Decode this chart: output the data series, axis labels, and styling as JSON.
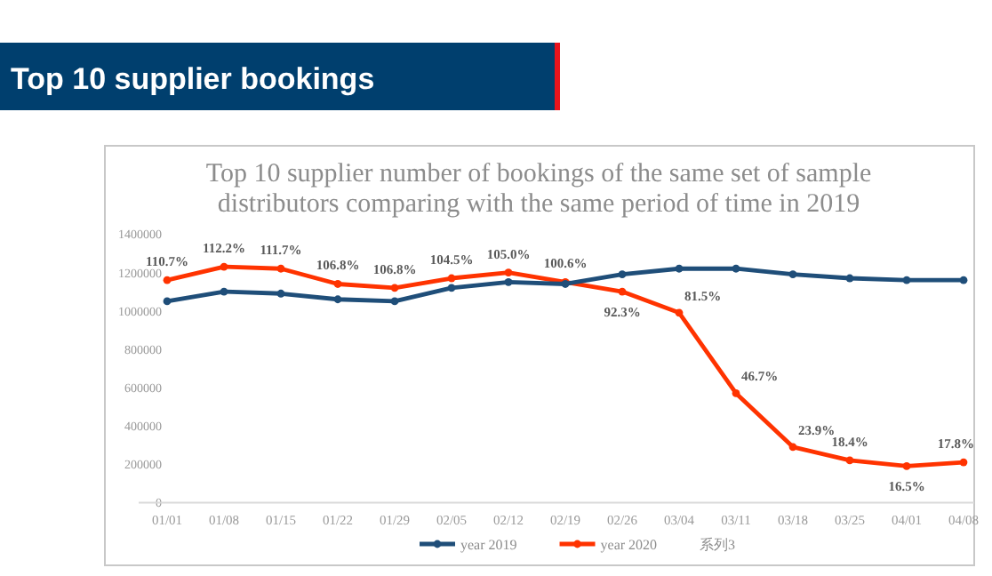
{
  "chart_data": {
    "type": "line",
    "title": "Top 10 supplier bookings",
    "subtitle": "Top 10 supplier number of bookings of the same set of sample distributors comparing with the same period of time in 2019",
    "categories": [
      "01/01",
      "01/08",
      "01/15",
      "01/22",
      "01/29",
      "02/05",
      "02/12",
      "02/19",
      "02/26",
      "03/04",
      "03/11",
      "03/18",
      "03/25",
      "04/01",
      "04/08"
    ],
    "series": [
      {
        "name": "year 2019",
        "color": "#1f4e79",
        "values": [
          1050000,
          1100000,
          1090000,
          1060000,
          1050000,
          1120000,
          1150000,
          1140000,
          1190000,
          1220000,
          1220000,
          1190000,
          1170000,
          1160000,
          1160000
        ]
      },
      {
        "name": "year 2020",
        "color": "#ff3300",
        "values": [
          1160000,
          1230000,
          1220000,
          1140000,
          1120000,
          1170000,
          1200000,
          1150000,
          1100000,
          990000,
          570000,
          290000,
          220000,
          190000,
          210000
        ]
      },
      {
        "name": "系列3",
        "values": [
          null,
          null,
          null,
          null,
          null,
          null,
          null,
          null,
          null,
          null,
          null,
          null,
          null,
          null,
          null
        ]
      }
    ],
    "annotations": [
      {
        "text": "110.7%",
        "x": "01/01",
        "y": 1160000
      },
      {
        "text": "112.2%",
        "x": "01/08",
        "y": 1230000
      },
      {
        "text": "111.7%",
        "x": "01/15",
        "y": 1220000
      },
      {
        "text": "106.8%",
        "x": "01/22",
        "y": 1140000
      },
      {
        "text": "106.8%",
        "x": "01/29",
        "y": 1120000
      },
      {
        "text": "104.5%",
        "x": "02/05",
        "y": 1170000
      },
      {
        "text": "105.0%",
        "x": "02/12",
        "y": 1200000
      },
      {
        "text": "100.6%",
        "x": "02/19",
        "y": 1150000
      },
      {
        "text": "92.3%",
        "x": "02/26",
        "y": 1100000
      },
      {
        "text": "81.5%",
        "x": "03/04",
        "y": 990000
      },
      {
        "text": "46.7%",
        "x": "03/11",
        "y": 570000
      },
      {
        "text": "23.9%",
        "x": "03/18",
        "y": 290000
      },
      {
        "text": "18.4%",
        "x": "03/25",
        "y": 220000
      },
      {
        "text": "16.5%",
        "x": "04/01",
        "y": 190000
      },
      {
        "text": "17.8%",
        "x": "04/08",
        "y": 210000
      }
    ],
    "ylim": [
      0,
      1400000
    ],
    "yticks": [
      0,
      200000,
      400000,
      600000,
      800000,
      1000000,
      1200000,
      1400000
    ],
    "marker": "circle",
    "line_style": "solid",
    "grid": false,
    "legend": "bottom"
  }
}
